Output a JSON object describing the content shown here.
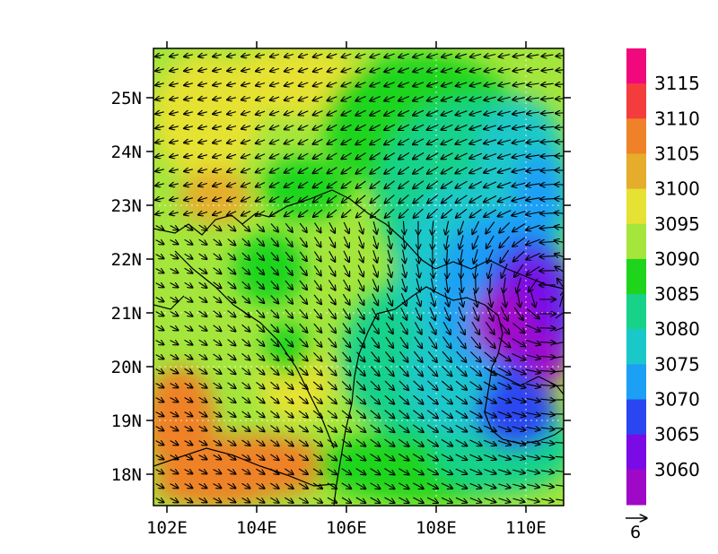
{
  "map": {
    "lon_range": [
      101.7,
      110.8
    ],
    "lat_range": [
      17.4,
      25.9
    ],
    "lon_ticks": [
      "102E",
      "104E",
      "106E",
      "108E",
      "110E"
    ],
    "lat_ticks": [
      "18N",
      "19N",
      "20N",
      "21N",
      "22N",
      "23N",
      "24N",
      "25N"
    ],
    "grid_style": "dotted white gridlines over lower-right",
    "field": "geopotential height (filled contours)",
    "vectors": "wind arrows, cyclonic circulation centered near 110E 21N"
  },
  "colorbar": {
    "levels": [
      "3115",
      "3110",
      "3105",
      "3100",
      "3095",
      "3090",
      "3085",
      "3080",
      "3075",
      "3070",
      "3065",
      "3060"
    ],
    "colors": [
      "#f0087c",
      "#f53c3c",
      "#ef8128",
      "#e5ad2b",
      "#e6e233",
      "#a4e63c",
      "#1fd51b",
      "#18d28a",
      "#1bc8c9",
      "#1ba0f5",
      "#2a46f0",
      "#7a0ae6",
      "#a008c8"
    ]
  },
  "reference_vector": {
    "label": "6"
  }
}
